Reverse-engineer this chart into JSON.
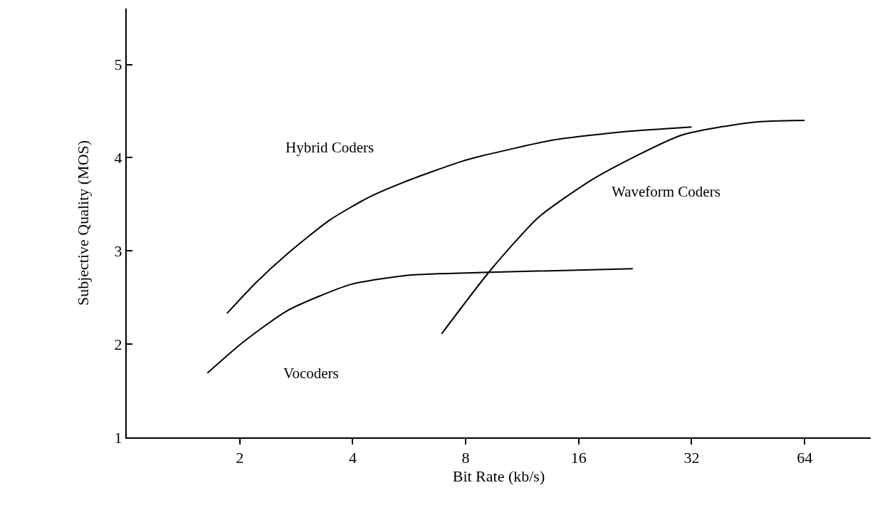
{
  "chart_data": {
    "type": "line",
    "xlabel": "Bit Rate (kb/s)",
    "ylabel": "Subjective Quality (MOS)",
    "log": "x",
    "xlim": [
      1,
      96
    ],
    "xticks": [
      2,
      4,
      8,
      16,
      32,
      64
    ],
    "ylim": [
      1,
      5.6
    ],
    "yticks": [
      1,
      2,
      3,
      4,
      5
    ],
    "legend": false,
    "marker": "none",
    "line_style": "solid",
    "series": [
      {
        "name": "Hybrid Coders",
        "color": "#000000",
        "x": [
          1.85,
          2.21,
          2.68,
          3.47,
          4.44,
          5.66,
          7.8,
          8.85,
          13.7,
          21.3,
          32
        ],
        "values": [
          2.33,
          2.66,
          2.97,
          3.33,
          3.58,
          3.76,
          3.96,
          4.02,
          4.19,
          4.28,
          4.33
        ]
      },
      {
        "name": "Vocoders",
        "color": "#000000",
        "x": [
          1.64,
          2.04,
          2.68,
          3.95,
          5.66,
          9.2,
          22.3
        ],
        "values": [
          1.69,
          2.02,
          2.36,
          2.64,
          2.74,
          2.77,
          2.81
        ]
      },
      {
        "name": "Waveform Coders",
        "color": "#000000",
        "x": [
          6.9,
          9.3,
          12.5,
          17.8,
          30,
          46.6,
          64
        ],
        "values": [
          2.11,
          2.79,
          3.36,
          3.79,
          4.24,
          4.38,
          4.4
        ]
      }
    ]
  }
}
